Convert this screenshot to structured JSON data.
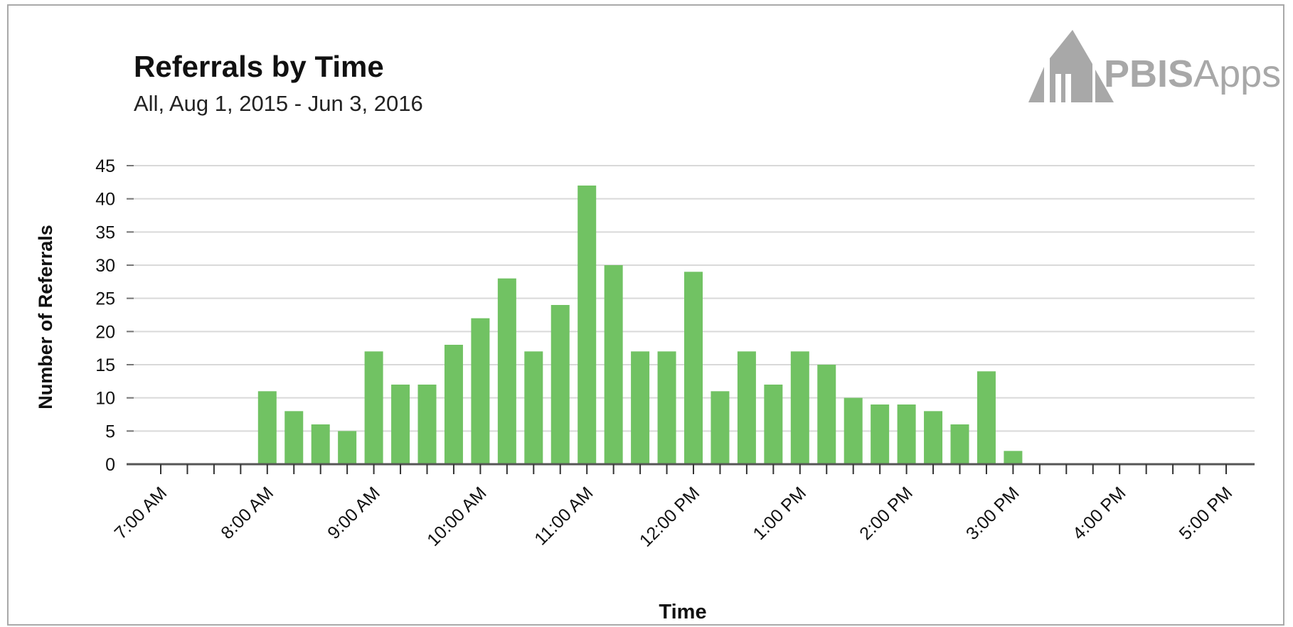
{
  "chart_data": {
    "type": "bar",
    "title": "Referrals by Time",
    "subtitle": "All, Aug 1, 2015 - Jun 3, 2016",
    "xlabel": "Time",
    "ylabel": "Number of Referrals",
    "ylim": [
      0,
      45
    ],
    "yticks": [
      0,
      5,
      10,
      15,
      20,
      25,
      30,
      35,
      40,
      45
    ],
    "grid": true,
    "legend": "none",
    "bar_color": "#71c263",
    "x_tick_labels": [
      "7:00 AM",
      "8:00 AM",
      "9:00 AM",
      "10:00 AM",
      "11:00 AM",
      "12:00 PM",
      "1:00 PM",
      "2:00 PM",
      "3:00 PM",
      "4:00 PM",
      "5:00 PM"
    ],
    "bin_minutes": 15,
    "categories": [
      "7:00 AM",
      "7:15 AM",
      "7:30 AM",
      "7:45 AM",
      "8:00 AM",
      "8:15 AM",
      "8:30 AM",
      "8:45 AM",
      "9:00 AM",
      "9:15 AM",
      "9:30 AM",
      "9:45 AM",
      "10:00 AM",
      "10:15 AM",
      "10:30 AM",
      "10:45 AM",
      "11:00 AM",
      "11:15 AM",
      "11:30 AM",
      "11:45 AM",
      "12:00 PM",
      "12:15 PM",
      "12:30 PM",
      "12:45 PM",
      "1:00 PM",
      "1:15 PM",
      "1:30 PM",
      "1:45 PM",
      "2:00 PM",
      "2:15 PM",
      "2:30 PM",
      "2:45 PM",
      "3:00 PM",
      "3:15 PM",
      "3:30 PM",
      "3:45 PM",
      "4:00 PM",
      "4:15 PM",
      "4:30 PM",
      "4:45 PM",
      "5:00 PM"
    ],
    "values": [
      0,
      0,
      0,
      0,
      11,
      8,
      6,
      5,
      17,
      12,
      12,
      18,
      22,
      28,
      17,
      24,
      42,
      30,
      17,
      17,
      29,
      11,
      17,
      12,
      17,
      15,
      10,
      9,
      9,
      8,
      6,
      14,
      2,
      0,
      0,
      0,
      0,
      0,
      0,
      0,
      0
    ]
  },
  "logo": {
    "text_bold": "PBIS",
    "text_light": "Apps"
  },
  "colors": {
    "text": "#111111",
    "axis": "#555555",
    "grid": "#d9d9d9",
    "logo": "#a8a8a8"
  }
}
